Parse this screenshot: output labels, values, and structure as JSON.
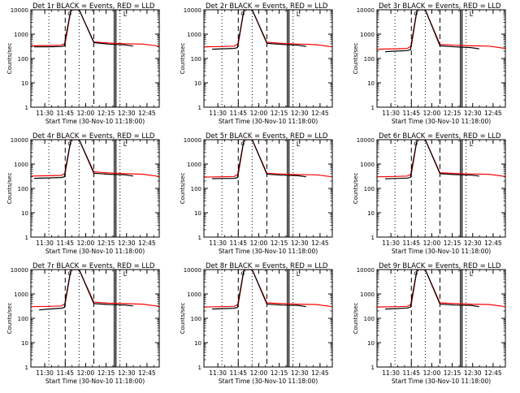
{
  "chart_data": [
    {
      "type": "line",
      "title": "Det 1r BLACK = Events, RED = LLD",
      "xlabel": "Start Time (30-Nov-10 11:18:00)",
      "ylabel": "Counts/sec",
      "yscale": "log",
      "ylim": [
        1,
        10000
      ],
      "xlim": [
        11.33,
        12.9
      ],
      "xticks": [
        "11:30",
        "11:45",
        "12:00",
        "12:15",
        "12:30",
        "12:45"
      ],
      "yticks": [
        "1",
        "10",
        "100",
        "1000",
        "10000"
      ],
      "series": [
        {
          "color": "#000000",
          "x": [
            11.37,
            11.55,
            11.7,
            11.74,
            11.75,
            11.82,
            11.92,
            12.1,
            12.28,
            12.48,
            12.58
          ],
          "y": [
            300,
            300,
            310,
            330,
            600,
            10000,
            10000,
            450,
            390,
            360,
            320
          ]
        },
        {
          "color": "#ff0000",
          "x": [
            11.33,
            11.55,
            11.7,
            11.75,
            11.82,
            11.92,
            12.1,
            12.28,
            12.48,
            12.7,
            12.9
          ],
          "y": [
            330,
            340,
            350,
            420,
            10000,
            10000,
            480,
            430,
            400,
            390,
            320
          ]
        }
      ]
    },
    {
      "type": "line",
      "title": "Det 2r BLACK = Events, RED = LLD",
      "xlabel": "Start Time (30-Nov-10 11:18:00)",
      "ylabel": "Counts/sec",
      "yscale": "log",
      "ylim": [
        1,
        10000
      ],
      "xlim": [
        11.33,
        12.9
      ],
      "xticks": [
        "11:30",
        "11:45",
        "12:00",
        "12:15",
        "12:30",
        "12:45"
      ],
      "yticks": [
        "1",
        "10",
        "100",
        "1000",
        "10000"
      ],
      "series": [
        {
          "color": "#000000",
          "x": [
            11.43,
            11.55,
            11.7,
            11.74,
            11.75,
            11.82,
            11.92,
            12.1,
            12.28,
            12.48,
            12.58
          ],
          "y": [
            240,
            250,
            260,
            280,
            500,
            10000,
            10000,
            420,
            380,
            350,
            310
          ]
        },
        {
          "color": "#ff0000",
          "x": [
            11.33,
            11.55,
            11.7,
            11.75,
            11.82,
            11.92,
            12.1,
            12.28,
            12.48,
            12.7,
            12.9
          ],
          "y": [
            300,
            310,
            320,
            400,
            10000,
            10000,
            460,
            420,
            390,
            370,
            300
          ]
        }
      ]
    },
    {
      "type": "line",
      "title": "Det 3r BLACK = Events, RED = LLD",
      "xlabel": "Start Time (30-Nov-10 11:18:00)",
      "ylabel": "Counts/sec",
      "yscale": "log",
      "ylim": [
        1,
        10000
      ],
      "xlim": [
        11.33,
        12.9
      ],
      "xticks": [
        "11:30",
        "11:45",
        "12:00",
        "12:15",
        "12:30",
        "12:45"
      ],
      "yticks": [
        "1",
        "10",
        "100",
        "1000",
        "10000"
      ],
      "series": [
        {
          "color": "#000000",
          "x": [
            11.43,
            11.55,
            11.7,
            11.74,
            11.75,
            11.82,
            11.92,
            12.1,
            12.28,
            12.48,
            12.58
          ],
          "y": [
            190,
            200,
            210,
            230,
            420,
            10000,
            10000,
            330,
            300,
            280,
            250
          ]
        },
        {
          "color": "#ff0000",
          "x": [
            11.33,
            11.55,
            11.7,
            11.75,
            11.82,
            11.92,
            12.1,
            12.28,
            12.48,
            12.7,
            12.9
          ],
          "y": [
            240,
            250,
            260,
            320,
            10000,
            10000,
            380,
            350,
            330,
            320,
            260
          ]
        }
      ]
    },
    {
      "type": "line",
      "title": "Det 4r BLACK = Events, RED = LLD",
      "xlabel": "Start Time (30-Nov-10 11:18:00)",
      "ylabel": "Counts/sec",
      "yscale": "log",
      "ylim": [
        1,
        10000
      ],
      "xlim": [
        11.33,
        12.9
      ],
      "xticks": [
        "11:30",
        "11:45",
        "12:00",
        "12:15",
        "12:30",
        "12:45"
      ],
      "yticks": [
        "1",
        "10",
        "100",
        "1000",
        "10000"
      ],
      "series": [
        {
          "color": "#000000",
          "x": [
            11.37,
            11.55,
            11.7,
            11.74,
            11.75,
            11.82,
            11.92,
            12.1,
            12.28,
            12.48,
            12.58
          ],
          "y": [
            260,
            270,
            280,
            300,
            550,
            10000,
            10000,
            420,
            380,
            360,
            320
          ]
        },
        {
          "color": "#ff0000",
          "x": [
            11.33,
            11.55,
            11.7,
            11.75,
            11.82,
            11.92,
            12.1,
            12.28,
            12.48,
            12.7,
            12.9
          ],
          "y": [
            320,
            330,
            340,
            420,
            10000,
            10000,
            480,
            430,
            400,
            380,
            310
          ]
        }
      ]
    },
    {
      "type": "line",
      "title": "Det 5r BLACK = Events, RED = LLD",
      "xlabel": "Start Time (30-Nov-10 11:18:00)",
      "ylabel": "Counts/sec",
      "yscale": "log",
      "ylim": [
        1,
        10000
      ],
      "xlim": [
        11.33,
        12.9
      ],
      "xticks": [
        "11:30",
        "11:45",
        "12:00",
        "12:15",
        "12:30",
        "12:45"
      ],
      "yticks": [
        "1",
        "10",
        "100",
        "1000",
        "10000"
      ],
      "series": [
        {
          "color": "#000000",
          "x": [
            11.43,
            11.55,
            11.7,
            11.74,
            11.75,
            11.82,
            11.92,
            12.1,
            12.28,
            12.48,
            12.58
          ],
          "y": [
            250,
            255,
            260,
            280,
            520,
            10000,
            10000,
            380,
            350,
            330,
            300
          ]
        },
        {
          "color": "#ff0000",
          "x": [
            11.33,
            11.55,
            11.7,
            11.75,
            11.82,
            11.92,
            12.1,
            12.28,
            12.48,
            12.7,
            12.9
          ],
          "y": [
            290,
            300,
            310,
            380,
            10000,
            10000,
            420,
            390,
            370,
            360,
            300
          ]
        }
      ]
    },
    {
      "type": "line",
      "title": "Det 6r BLACK = Events, RED = LLD",
      "xlabel": "Start Time (30-Nov-10 11:18:00)",
      "ylabel": "Counts/sec",
      "yscale": "log",
      "ylim": [
        1,
        10000
      ],
      "xlim": [
        11.33,
        12.9
      ],
      "xticks": [
        "11:30",
        "11:45",
        "12:00",
        "12:15",
        "12:30",
        "12:45"
      ],
      "yticks": [
        "1",
        "10",
        "100",
        "1000",
        "10000"
      ],
      "series": [
        {
          "color": "#000000",
          "x": [
            11.43,
            11.55,
            11.7,
            11.74,
            11.75,
            11.82,
            11.92,
            12.1,
            12.28,
            12.48,
            12.58
          ],
          "y": [
            250,
            255,
            265,
            285,
            520,
            10000,
            10000,
            400,
            370,
            350,
            320
          ]
        },
        {
          "color": "#ff0000",
          "x": [
            11.33,
            11.55,
            11.7,
            11.75,
            11.82,
            11.92,
            12.1,
            12.28,
            12.48,
            12.7,
            12.9
          ],
          "y": [
            300,
            310,
            320,
            390,
            10000,
            10000,
            440,
            410,
            390,
            380,
            310
          ]
        }
      ]
    },
    {
      "type": "line",
      "title": "Det 7r BLACK = Events, RED = LLD",
      "xlabel": "Start Time (30-Nov-10 11:18:00)",
      "ylabel": "Counts/sec",
      "yscale": "log",
      "ylim": [
        1,
        10000
      ],
      "xlim": [
        11.33,
        12.9
      ],
      "xticks": [
        "11:30",
        "11:45",
        "12:00",
        "12:15",
        "12:30",
        "12:45"
      ],
      "yticks": [
        "1",
        "10",
        "100",
        "1000",
        "10000"
      ],
      "series": [
        {
          "color": "#000000",
          "x": [
            11.43,
            11.55,
            11.7,
            11.74,
            11.75,
            11.82,
            11.92,
            12.1,
            12.28,
            12.48,
            12.58
          ],
          "y": [
            220,
            240,
            260,
            280,
            520,
            10000,
            10000,
            400,
            370,
            350,
            320
          ]
        },
        {
          "color": "#ff0000",
          "x": [
            11.33,
            11.55,
            11.7,
            11.75,
            11.82,
            11.92,
            12.1,
            12.28,
            12.48,
            12.7,
            12.9
          ],
          "y": [
            300,
            310,
            320,
            400,
            10000,
            10000,
            460,
            420,
            400,
            380,
            310
          ]
        }
      ]
    },
    {
      "type": "line",
      "title": "Det 8r BLACK = Events, RED = LLD",
      "xlabel": "Start Time (30-Nov-10 11:18:00)",
      "ylabel": "Counts/sec",
      "yscale": "log",
      "ylim": [
        1,
        10000
      ],
      "xlim": [
        11.33,
        12.9
      ],
      "xticks": [
        "11:30",
        "11:45",
        "12:00",
        "12:15",
        "12:30",
        "12:45"
      ],
      "yticks": [
        "1",
        "10",
        "100",
        "1000",
        "10000"
      ],
      "series": [
        {
          "color": "#000000",
          "x": [
            11.43,
            11.55,
            11.7,
            11.74,
            11.75,
            11.82,
            11.92,
            12.1,
            12.28,
            12.48,
            12.58
          ],
          "y": [
            240,
            250,
            260,
            280,
            500,
            10000,
            10000,
            380,
            350,
            340,
            300
          ]
        },
        {
          "color": "#ff0000",
          "x": [
            11.33,
            11.55,
            11.7,
            11.75,
            11.82,
            11.92,
            12.1,
            12.28,
            12.48,
            12.7,
            12.9
          ],
          "y": [
            290,
            300,
            310,
            380,
            10000,
            10000,
            430,
            400,
            380,
            370,
            300
          ]
        }
      ]
    },
    {
      "type": "line",
      "title": "Det 9r BLACK = Events, RED = LLD",
      "xlabel": "Start Time (30-Nov-10 11:18:00)",
      "ylabel": "Counts/sec",
      "yscale": "log",
      "ylim": [
        1,
        10000
      ],
      "xlim": [
        11.33,
        12.9
      ],
      "xticks": [
        "11:30",
        "11:45",
        "12:00",
        "12:15",
        "12:30",
        "12:45"
      ],
      "yticks": [
        "1",
        "10",
        "100",
        "1000",
        "10000"
      ],
      "series": [
        {
          "color": "#000000",
          "x": [
            11.43,
            11.55,
            11.7,
            11.74,
            11.75,
            11.82,
            11.92,
            12.1,
            12.28,
            12.48,
            12.58
          ],
          "y": [
            240,
            250,
            265,
            290,
            520,
            10000,
            10000,
            380,
            350,
            340,
            300
          ]
        },
        {
          "color": "#ff0000",
          "x": [
            11.33,
            11.55,
            11.7,
            11.75,
            11.82,
            11.92,
            12.1,
            12.28,
            12.48,
            12.7,
            12.9
          ],
          "y": [
            290,
            300,
            310,
            380,
            10000,
            10000,
            430,
            400,
            380,
            370,
            300
          ]
        }
      ]
    }
  ],
  "markers": {
    "dotted_x": [
      11.55,
      11.92,
      12.42
    ],
    "dashed_x": [
      11.75,
      12.1
    ],
    "solid_x": [
      12.35,
      12.37
    ],
    "circle_symbol": "o",
    "bracket_symbol": "L"
  }
}
